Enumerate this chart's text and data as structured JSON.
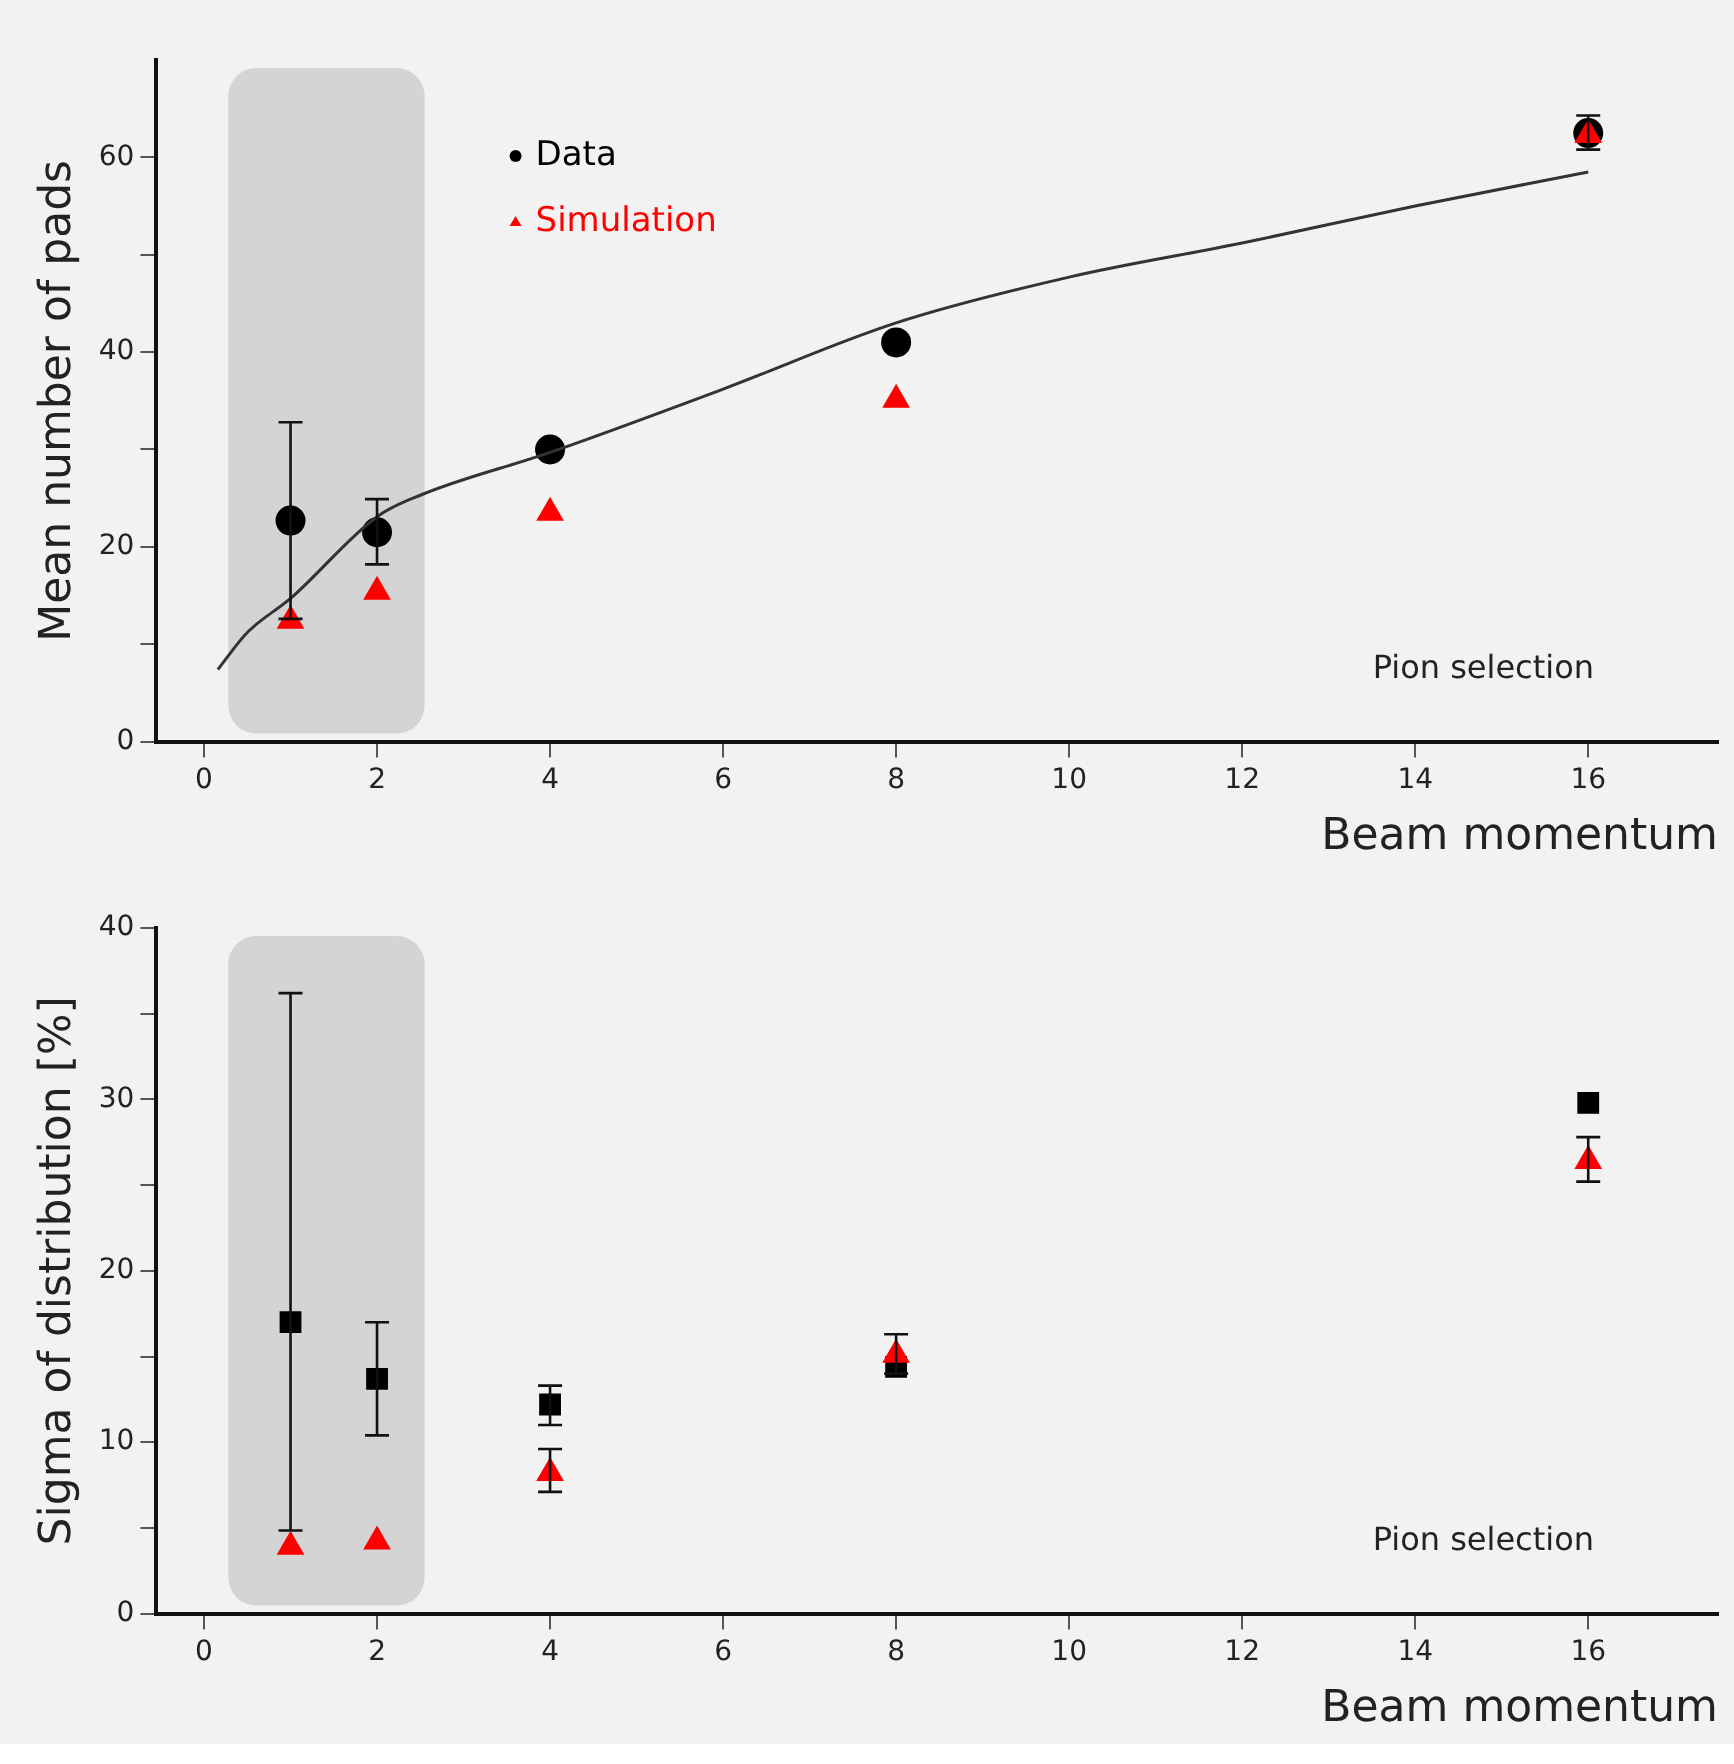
{
  "chart_data": [
    {
      "type": "scatter",
      "ylabel": "Mean number of pads",
      "xlabel": "Beam momentum",
      "xlim": [
        -0.55,
        17.5
      ],
      "xticks": [
        0,
        2,
        4,
        6,
        8,
        10,
        12,
        14,
        16
      ],
      "ylim": [
        0,
        70
      ],
      "yticks": [
        0,
        {
          "value": 10,
          "label": null
        },
        20,
        {
          "value": 30,
          "label": null
        },
        40,
        {
          "value": 50,
          "label": null
        },
        60
      ],
      "legend": "top left",
      "grid": false,
      "annotations": [
        "Pion selection"
      ],
      "bands": [
        {
          "axis": "x",
          "from": 0.28,
          "to": 2.55,
          "color": "#d4d4d4"
        }
      ],
      "series": [
        {
          "name": "Data",
          "color": "#000000",
          "marker": "circle",
          "x": [
            1,
            2,
            4,
            8,
            16
          ],
          "values": [
            22.7,
            21.5,
            30.0,
            41.0,
            62.5
          ],
          "errors": [
            [
              12.6,
              32.8
            ],
            [
              18.2,
              24.9
            ],
            null,
            null,
            [
              60.8,
              64.3
            ]
          ]
        },
        {
          "name": "Simulation",
          "color": "#ff0000",
          "marker": "triangle",
          "x": [
            1,
            2,
            4,
            8,
            16
          ],
          "values": [
            12.4,
            15.4,
            23.5,
            35.1,
            62.3
          ]
        },
        {
          "type": "line",
          "color": "#333333",
          "marker": "none",
          "x": [
            0.16,
            0.5,
            1,
            2,
            2.5,
            4,
            6,
            8,
            10,
            12,
            14,
            16
          ],
          "values": [
            7.4,
            11.2,
            14.7,
            23.1,
            25.3,
            29.7,
            36.2,
            43.0,
            47.7,
            51.2,
            55.0,
            58.5
          ]
        }
      ]
    },
    {
      "type": "scatter",
      "ylabel": "Sigma of distribution [%]",
      "xlabel": "Beam momentum",
      "xlim": [
        -0.55,
        17.5
      ],
      "xticks": [
        0,
        2,
        4,
        6,
        8,
        10,
        12,
        14,
        16
      ],
      "ylim": [
        0,
        40
      ],
      "yticks": [
        0,
        {
          "value": 5,
          "label": null
        },
        10,
        {
          "value": 15,
          "label": null
        },
        20,
        {
          "value": 25,
          "label": null
        },
        30,
        {
          "value": 35,
          "label": null
        },
        40
      ],
      "grid": false,
      "annotations": [
        "Pion selection"
      ],
      "bands": [
        {
          "axis": "x",
          "from": 0.28,
          "to": 2.55,
          "color": "#d4d4d4"
        }
      ],
      "series": [
        {
          "color": "#000000",
          "marker": "square",
          "x": [
            1,
            2,
            4,
            8,
            16
          ],
          "values": [
            17.0,
            13.7,
            12.2,
            14.4,
            29.8
          ],
          "errors": [
            [
              4.85,
              36.2
            ],
            [
              10.4,
              17.0
            ],
            [
              11.0,
              13.3
            ],
            null,
            null
          ]
        },
        {
          "color": "#ff0000",
          "marker": "triangle",
          "x": [
            1,
            2,
            4,
            8,
            16
          ],
          "values": [
            3.9,
            4.2,
            8.2,
            15.1,
            26.4
          ],
          "errors": [
            null,
            null,
            [
              7.1,
              9.6
            ],
            [
              14.0,
              16.3
            ],
            [
              25.2,
              27.8
            ]
          ]
        }
      ]
    }
  ]
}
